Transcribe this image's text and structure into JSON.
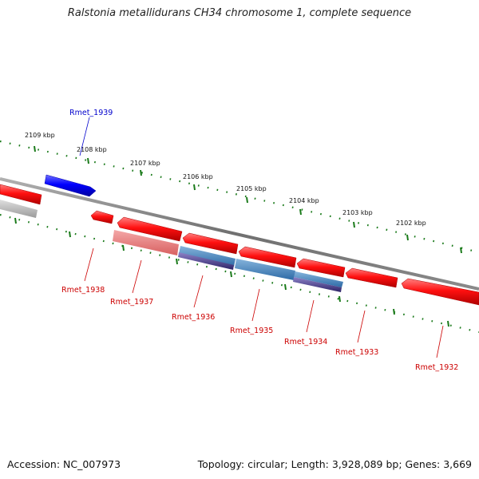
{
  "title": "Ralstonia metallidurans CH34 chromosome 1, complete sequence",
  "footer": {
    "accession": "Accession: NC_007973",
    "summary": "Topology: circular; Length: 3,928,089 bp; Genes: 3,669"
  },
  "colors": {
    "backbone": "#808080",
    "ruler": "#1a7a1a",
    "gene_forward": "#0000ee",
    "gene_reverse": "#ee0000",
    "gene_reverse_label": "#cc0000",
    "gene_forward_label": "#0000cc",
    "feature_pink": "#e88080",
    "feature_blue": "#4a86c0",
    "feature_purple": "#4a3e8e",
    "feature_grey": "#bbbbbb"
  },
  "ruler_labels": [
    "2109 kbp",
    "2108 kbp",
    "2107 kbp",
    "2106 kbp",
    "2105 kbp",
    "2104 kbp",
    "2103 kbp",
    "2102 kbp"
  ],
  "gene_labels": [
    {
      "name": "Rmet_1939",
      "strand": "forward"
    },
    {
      "name": "Rmet_1938",
      "strand": "reverse"
    },
    {
      "name": "Rmet_1937",
      "strand": "reverse"
    },
    {
      "name": "Rmet_1936",
      "strand": "reverse"
    },
    {
      "name": "Rmet_1935",
      "strand": "reverse"
    },
    {
      "name": "Rmet_1934",
      "strand": "reverse"
    },
    {
      "name": "Rmet_1933",
      "strand": "reverse"
    },
    {
      "name": "Rmet_1932",
      "strand": "reverse"
    }
  ]
}
